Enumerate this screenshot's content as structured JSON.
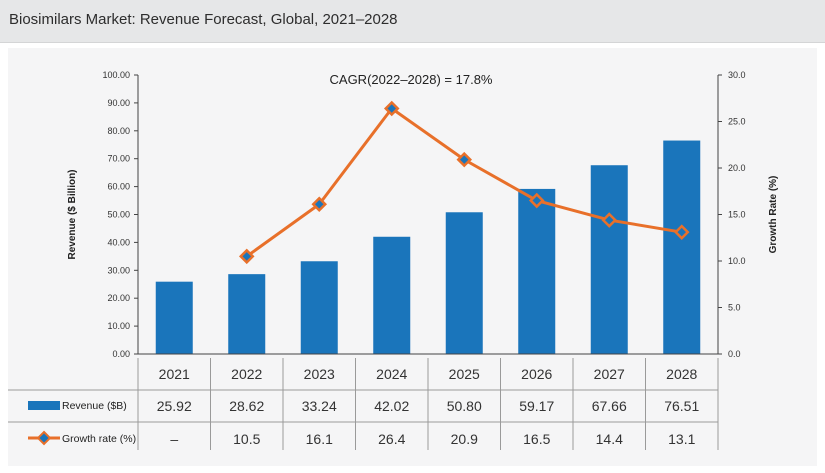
{
  "header": {
    "title": "Biosimilars Market: Revenue Forecast, Global, 2021–2028"
  },
  "chart_data": {
    "type": "bar",
    "annotation": "CAGR(2022–2028) = 17.8%",
    "categories": [
      "2021",
      "2022",
      "2023",
      "2024",
      "2025",
      "2026",
      "2027",
      "2028"
    ],
    "series": [
      {
        "name": "Revenue ($B)",
        "type": "bar",
        "axis": "left",
        "color": "#1a75bb",
        "values": [
          25.92,
          28.62,
          33.24,
          42.02,
          50.8,
          59.17,
          67.66,
          76.51
        ],
        "labels": [
          "25.92",
          "28.62",
          "33.24",
          "42.02",
          "50.80",
          "59.17",
          "67.66",
          "76.51"
        ]
      },
      {
        "name": "Growth rate (%)",
        "type": "line",
        "axis": "right",
        "color": "#e8702a",
        "marker_color": "#1a75bb",
        "values": [
          null,
          10.5,
          16.1,
          26.4,
          20.9,
          16.5,
          14.4,
          13.1
        ],
        "labels": [
          "–",
          "10.5",
          "16.1",
          "26.4",
          "20.9",
          "16.5",
          "14.4",
          "13.1"
        ]
      }
    ],
    "ylabel": "Revenue ($ Billion)",
    "ylim": [
      0,
      100
    ],
    "yticks": [
      "0.00",
      "10.00",
      "20.00",
      "30.00",
      "40.00",
      "50.00",
      "60.00",
      "70.00",
      "80.00",
      "90.00",
      "100.00"
    ],
    "y2label": "Growth Rate (%)",
    "y2lim": [
      0,
      30
    ],
    "y2ticks": [
      "0.0",
      "5.0",
      "10.0",
      "15.0",
      "20.0",
      "25.0",
      "30.0"
    ],
    "grid": false,
    "legend": "data-table-bottom"
  }
}
